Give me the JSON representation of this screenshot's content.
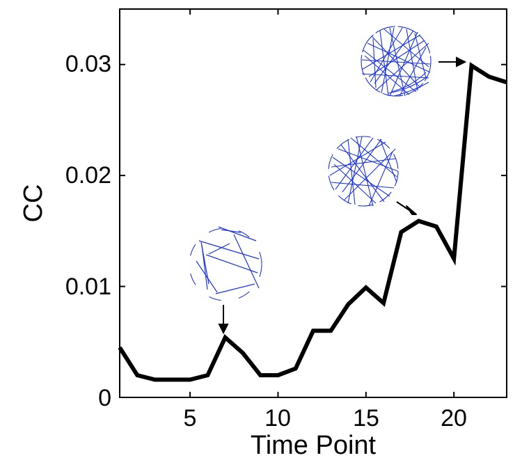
{
  "chart_data": {
    "type": "line",
    "xlabel": "Time Point",
    "ylabel": "CC",
    "xlim": [
      1,
      23
    ],
    "ylim": [
      0,
      0.035
    ],
    "xticks": [
      5,
      10,
      15,
      20
    ],
    "xtick_labels": [
      "5",
      "10",
      "15",
      "20"
    ],
    "yticks": [
      0,
      0.01,
      0.02,
      0.03
    ],
    "ytick_labels": [
      "0",
      "0.01",
      "0.02",
      "0.03"
    ],
    "grid": false,
    "series": [
      {
        "color": "#000000",
        "x": [
          1,
          2,
          3,
          4,
          5,
          6,
          7,
          8,
          9,
          10,
          11,
          12,
          13,
          14,
          15,
          16,
          17,
          18,
          19,
          20,
          21,
          22,
          23
        ],
        "y": [
          0.0045,
          0.002,
          0.0016,
          0.0016,
          0.0016,
          0.002,
          0.0054,
          0.004,
          0.002,
          0.002,
          0.0026,
          0.006,
          0.006,
          0.0084,
          0.0099,
          0.0085,
          0.0149,
          0.0159,
          0.0154,
          0.0125,
          0.0299,
          0.0289,
          0.0284
        ]
      }
    ],
    "annotations": [
      {
        "type": "network-inset",
        "x": 7,
        "y": 0.0054,
        "icon": "sparse-network-graph-icon",
        "line_color": "#1a33e0"
      },
      {
        "type": "network-inset",
        "x": 18,
        "y": 0.0159,
        "icon": "medium-network-graph-icon",
        "line_color": "#1a33e0"
      },
      {
        "type": "network-inset",
        "x": 21,
        "y": 0.0299,
        "icon": "dense-network-graph-icon",
        "line_color": "#1a33e0"
      }
    ]
  }
}
